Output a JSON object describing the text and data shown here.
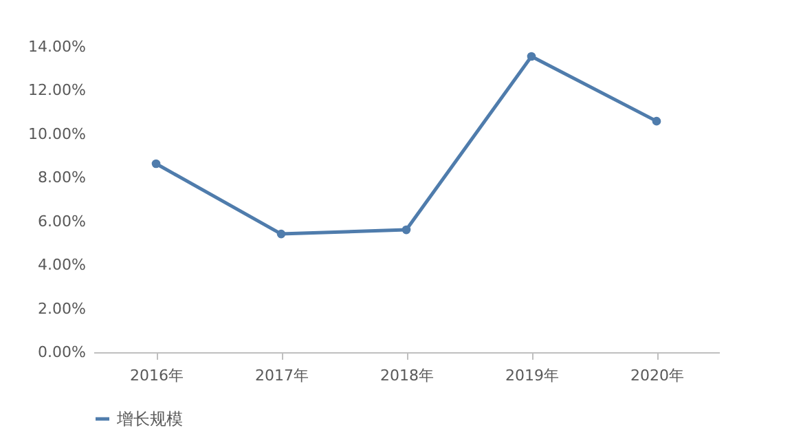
{
  "chart_data": {
    "type": "line",
    "categories": [
      "2016年",
      "2017年",
      "2018年",
      "2019年",
      "2020年"
    ],
    "series": [
      {
        "name": "增长规模",
        "color": "#4f7cac",
        "values": [
          8.64,
          5.42,
          5.61,
          13.56,
          10.59
        ]
      }
    ],
    "ylim": [
      0,
      14
    ],
    "yticks": [
      {
        "value": 0,
        "label": "0.00%"
      },
      {
        "value": 2,
        "label": "2.00%"
      },
      {
        "value": 4,
        "label": "4.00%"
      },
      {
        "value": 6,
        "label": "6.00%"
      },
      {
        "value": 8,
        "label": "8.00%"
      },
      {
        "value": 10,
        "label": "10.00%"
      },
      {
        "value": 12,
        "label": "12.00%"
      },
      {
        "value": 14,
        "label": "14.00%"
      }
    ],
    "grid": false,
    "legend": "bottom",
    "marker": "circle",
    "line_style": "solid"
  }
}
